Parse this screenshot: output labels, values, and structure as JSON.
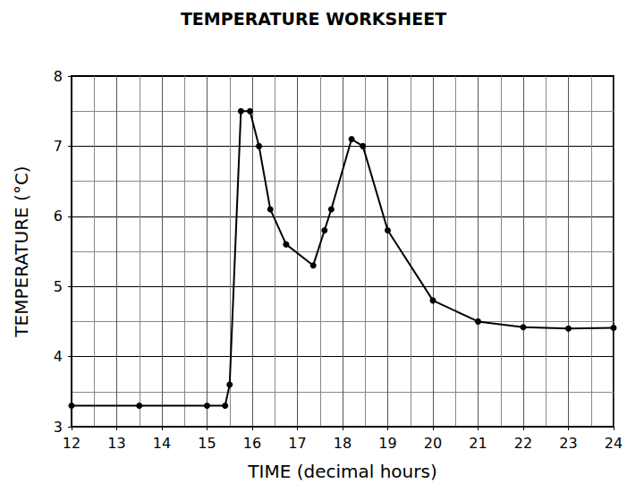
{
  "chart_data": {
    "type": "line",
    "title": "TEMPERATURE WORKSHEET",
    "x_label": "TIME (decimal hours)",
    "y_label": "TEMPERATURE (°C)",
    "x": [
      12,
      13.5,
      15,
      15.4,
      15.5,
      15.75,
      15.95,
      16.15,
      16.4,
      16.75,
      17.35,
      17.6,
      17.75,
      18.2,
      18.45,
      19,
      20,
      21,
      22,
      23,
      24
    ],
    "values": [
      3.3,
      3.3,
      3.3,
      3.3,
      3.6,
      7.5,
      7.5,
      7.0,
      6.1,
      5.6,
      5.3,
      5.8,
      6.1,
      7.1,
      7.0,
      5.8,
      4.8,
      4.5,
      4.42,
      4.4,
      4.41
    ],
    "color": "#000000",
    "marker": "circle",
    "line_style": "solid",
    "xlim": [
      12,
      24
    ],
    "xticks": [
      12,
      13,
      14,
      15,
      16,
      17,
      18,
      19,
      20,
      21,
      22,
      23,
      24
    ],
    "ylim": [
      3,
      8
    ],
    "yticks": [
      3,
      4,
      5,
      6,
      7,
      8
    ],
    "grid": true
  }
}
